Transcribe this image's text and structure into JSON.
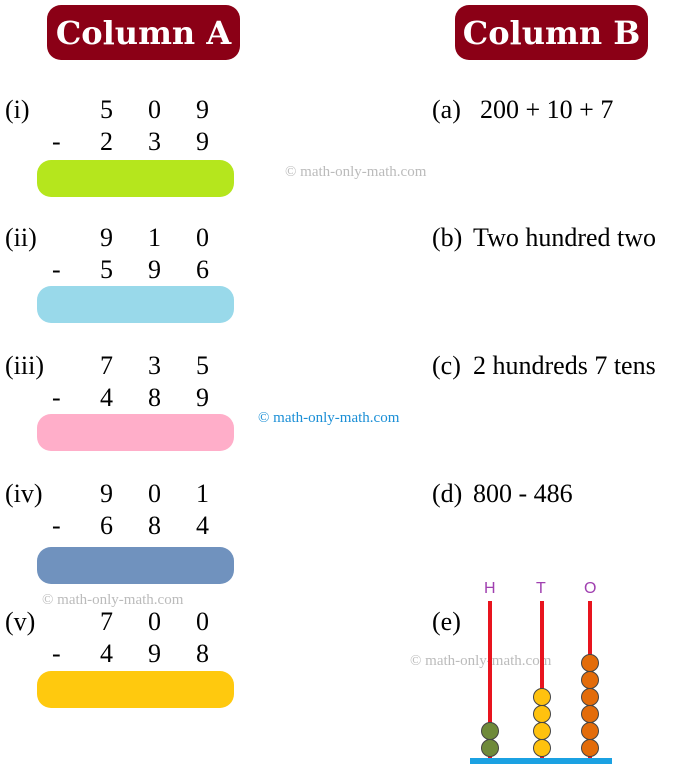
{
  "headers": {
    "a": "Column A",
    "b": "Column B"
  },
  "column_a": [
    {
      "label": "(i)",
      "top": [
        "5",
        "0",
        "9"
      ],
      "bottom": [
        "2",
        "3",
        "9"
      ],
      "op": "-",
      "answer_color": "#b5e61d"
    },
    {
      "label": "(ii)",
      "top": [
        "9",
        "1",
        "0"
      ],
      "bottom": [
        "5",
        "9",
        "6"
      ],
      "op": "-",
      "answer_color": "#99d9ea"
    },
    {
      "label": "(iii)",
      "top": [
        "7",
        "3",
        "5"
      ],
      "bottom": [
        "4",
        "8",
        "9"
      ],
      "op": "-",
      "answer_color": "#ffaec9"
    },
    {
      "label": "(iv)",
      "top": [
        "9",
        "0",
        "1"
      ],
      "bottom": [
        "6",
        "8",
        "4"
      ],
      "op": "-",
      "answer_color": "#7092be"
    },
    {
      "label": "(v)",
      "top": [
        "7",
        "0",
        "0"
      ],
      "bottom": [
        "4",
        "9",
        "8"
      ],
      "op": "-",
      "answer_color": "#ffc90e"
    }
  ],
  "column_b": [
    {
      "label": "(a)",
      "text": "200 + 10 + 7"
    },
    {
      "label": "(b)",
      "text": "Two hundred two"
    },
    {
      "label": "(c)",
      "text": "2 hundreds 7 tens"
    },
    {
      "label": "(d)",
      "text": "800 - 486"
    },
    {
      "label": "(e)",
      "text": ""
    }
  ],
  "abacus": {
    "rods": [
      {
        "label": "H",
        "beads": 2,
        "color": "#6f8a3a"
      },
      {
        "label": "T",
        "beads": 4,
        "color": "#ffc20e"
      },
      {
        "label": "O",
        "beads": 6,
        "color": "#e36c0a"
      }
    ],
    "label_color": "#a040b0",
    "rod_color": "#e8141e",
    "base_color": "#1ba1e2"
  },
  "watermarks": [
    "© math-only-math.com",
    "© math-only-math.com",
    "© math-only-math.com",
    "© math-only-math.com"
  ]
}
